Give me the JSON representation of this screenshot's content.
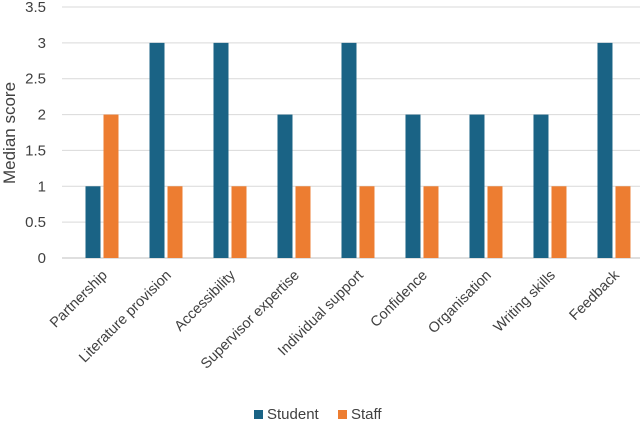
{
  "chart_data": {
    "type": "bar",
    "title": "",
    "xlabel": "",
    "ylabel": "Median score",
    "ylim": [
      0,
      3.5
    ],
    "yticks": [
      "0",
      "0.5",
      "1",
      "1.5",
      "2",
      "2.5",
      "3",
      "3.5"
    ],
    "grid": true,
    "legend_position": "bottom",
    "categories": [
      "Partnership",
      "Literature provision",
      "Accessibility",
      "Supervisor expertise",
      "Individual support",
      "Confidence",
      "Organisation",
      "Writing skills",
      "Feedback"
    ],
    "series": [
      {
        "name": "Student",
        "color": "#1a6385",
        "values": [
          1,
          3,
          3,
          2,
          3,
          2,
          2,
          2,
          3
        ]
      },
      {
        "name": "Staff",
        "color": "#ed7d31",
        "values": [
          2,
          1,
          1,
          1,
          1,
          1,
          1,
          1,
          1
        ]
      }
    ]
  }
}
